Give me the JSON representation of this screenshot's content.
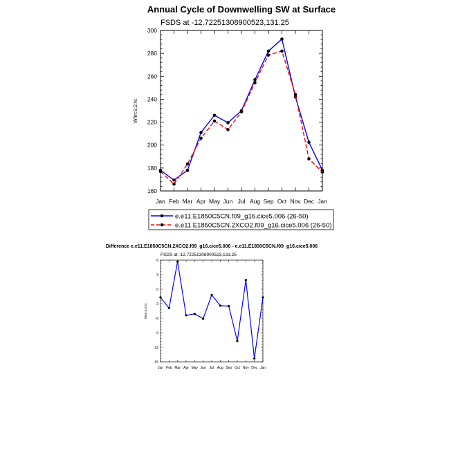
{
  "chart_data": [
    {
      "type": "line",
      "title": "Annual Cycle of Downwelling SW at Surface",
      "subtitle": "FSDS at -12.72251308900523,131.25",
      "ylabel": "W/m:S:2:N:",
      "categories": [
        "Jan",
        "Feb",
        "Mar",
        "Apr",
        "May",
        "Jun",
        "Jul",
        "Aug",
        "Sep",
        "Oct",
        "Nov",
        "Dec",
        "Jan"
      ],
      "ylim": [
        160,
        300
      ],
      "yticks": [
        160,
        180,
        200,
        220,
        240,
        260,
        280,
        300
      ],
      "legend_position": "bottom",
      "series": [
        {
          "name": "e.e11.E1850C5CN.f09_g16.cice5.006 (26-50)",
          "color": "#0000ff",
          "dash": "solid",
          "values": [
            178,
            169.5,
            178,
            211,
            226,
            219.5,
            230,
            257,
            282,
            292.5,
            242,
            202.5,
            178
          ]
        },
        {
          "name": "e.e11.E1850C5CN.2XCO2.f09_g16.cice5.006 (26-50)",
          "color": "#ff0000",
          "dash": "dashed",
          "values": [
            177,
            166,
            183.5,
            206,
            221,
            213.5,
            229,
            254.5,
            278.5,
            282,
            244,
            188,
            176.5
          ]
        }
      ]
    },
    {
      "type": "line",
      "title": "Difference e.e11.E1850C5CN.2XCO2.f09_g16.cice5.006 - e.e11.E1850C5CN.f09_g16.cice5.006",
      "subtitle": "FSDS at -12.72251308900523,131.25",
      "ylabel": "W/m:S:2:N:",
      "categories": [
        "Jan",
        "Feb",
        "Mar",
        "Apr",
        "May",
        "Jun",
        "Jul",
        "Aug",
        "Sep",
        "Oct",
        "Nov",
        "Dec",
        "Jan"
      ],
      "ylim": [
        -15,
        6
      ],
      "yticks": [
        -15,
        -12,
        -9,
        -6,
        -3,
        0,
        3,
        6
      ],
      "series": [
        {
          "color": "#0000ff",
          "values": [
            -1.7,
            -3.9,
            5.7,
            -5.4,
            -5.1,
            -6.1,
            -1.2,
            -3.4,
            -3.5,
            -10.7,
            1.9,
            -14.3,
            -1.7
          ]
        }
      ]
    }
  ]
}
